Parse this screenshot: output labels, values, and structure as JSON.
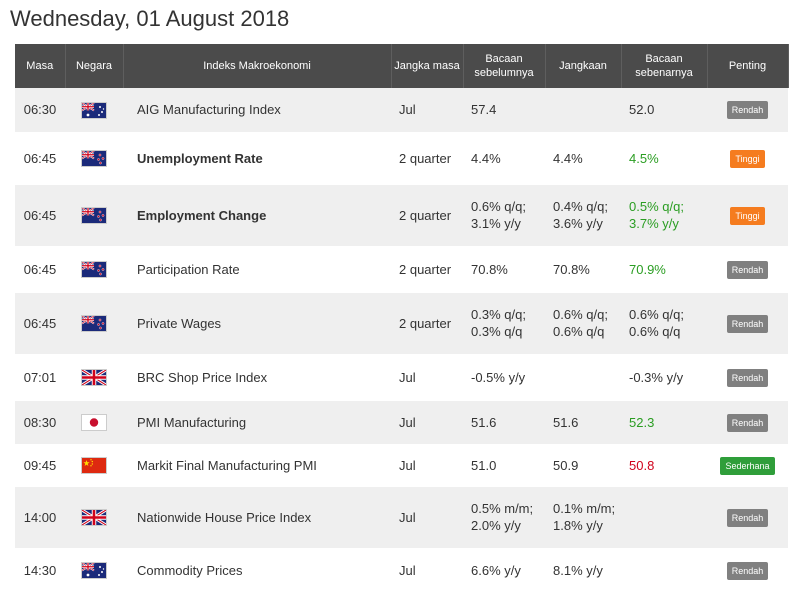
{
  "title": "Wednesday, 01 August 2018",
  "headers": {
    "time": "Masa",
    "country": "Negara",
    "indicator": "Indeks Makroekonomi",
    "period": "Jangka masa",
    "previous": "Bacaan sebelumnya",
    "forecast": "Jangkaan",
    "actual": "Bacaan sebenarnya",
    "importance": "Penting"
  },
  "rows": [
    {
      "time": "06:30",
      "flag": "australia-flag",
      "indicator": "AIG Manufacturing Index",
      "bold": false,
      "period": "Jul",
      "previous": "57.4",
      "forecast": "",
      "actual": "52.0",
      "actual_color": "",
      "importance": "Rendah",
      "importance_level": "low"
    },
    {
      "time": "06:45",
      "flag": "new-zealand-flag",
      "indicator": "Unemployment Rate",
      "bold": true,
      "period": "2 quarter",
      "previous": "4.4%",
      "forecast": "4.4%",
      "actual": "4.5%",
      "actual_color": "green",
      "importance": "Tinggi",
      "importance_level": "high"
    },
    {
      "time": "06:45",
      "flag": "new-zealand-flag",
      "indicator": "Employment Change",
      "bold": true,
      "period": "2 quarter",
      "previous": "0.6% q/q; 3.1% y/y",
      "forecast": "0.4% q/q; 3.6% y/y",
      "actual": "0.5% q/q; 3.7% y/y",
      "actual_color": "green",
      "importance": "Tinggi",
      "importance_level": "high"
    },
    {
      "time": "06:45",
      "flag": "new-zealand-flag",
      "indicator": "Participation Rate",
      "bold": false,
      "period": "2 quarter",
      "previous": "70.8%",
      "forecast": "70.8%",
      "actual": "70.9%",
      "actual_color": "green",
      "importance": "Rendah",
      "importance_level": "low"
    },
    {
      "time": "06:45",
      "flag": "new-zealand-flag",
      "indicator": "Private Wages",
      "bold": false,
      "period": "2 quarter",
      "previous": "0.3% q/q; 0.3% q/q",
      "forecast": "0.6% q/q; 0.6% q/q",
      "actual": "0.6% q/q; 0.6% q/q",
      "actual_color": "",
      "importance": "Rendah",
      "importance_level": "low"
    },
    {
      "time": "07:01",
      "flag": "uk-flag",
      "indicator": "BRC Shop Price Index",
      "bold": false,
      "period": "Jul",
      "previous": "-0.5% y/y",
      "forecast": "",
      "actual": "-0.3% y/y",
      "actual_color": "",
      "importance": "Rendah",
      "importance_level": "low"
    },
    {
      "time": "08:30",
      "flag": "japan-flag",
      "indicator": "PMI Manufacturing",
      "bold": false,
      "period": "Jul",
      "previous": "51.6",
      "forecast": "51.6",
      "actual": "52.3",
      "actual_color": "green",
      "importance": "Rendah",
      "importance_level": "low"
    },
    {
      "time": "09:45",
      "flag": "china-flag",
      "indicator": "Markit Final Manufacturing PMI",
      "bold": false,
      "period": "Jul",
      "previous": "51.0",
      "forecast": "50.9",
      "actual": "50.8",
      "actual_color": "red",
      "importance": "Sederhana",
      "importance_level": "mod"
    },
    {
      "time": "14:00",
      "flag": "uk-flag",
      "indicator": "Nationwide House Price Index",
      "bold": false,
      "period": "Jul",
      "previous": "0.5% m/m; 2.0% y/y",
      "forecast": "0.1% m/m; 1.8% y/y",
      "actual": "",
      "actual_color": "",
      "importance": "Rendah",
      "importance_level": "low"
    },
    {
      "time": "14:30",
      "flag": "australia-flag",
      "indicator": "Commodity Prices",
      "bold": false,
      "period": "Jul",
      "previous": "6.6% y/y",
      "forecast": "8.1% y/y",
      "actual": "",
      "actual_color": "",
      "importance": "Rendah",
      "importance_level": "low"
    }
  ]
}
